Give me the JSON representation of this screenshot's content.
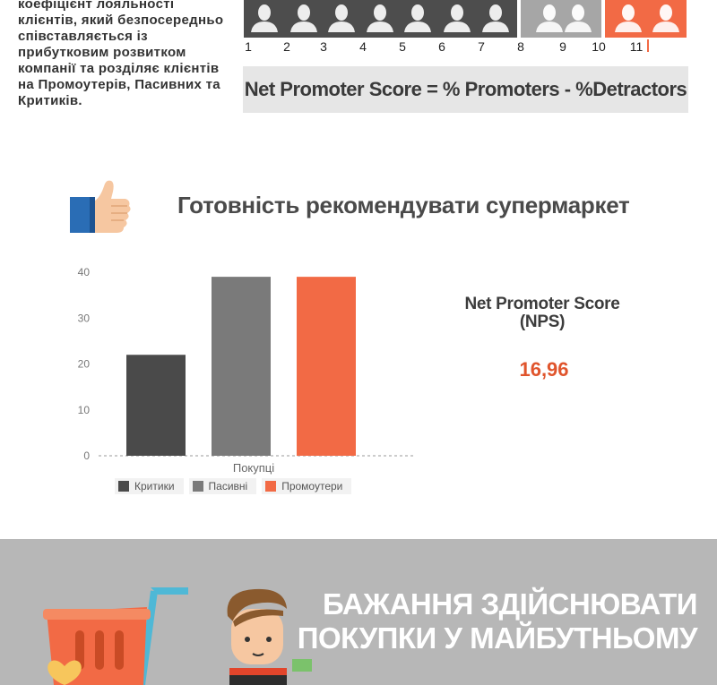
{
  "description": "коефіцієнт лояльності\nклієнтів, який безпосередньо\nспівставляється із\nприбутковим розвитком\nкомпанії та розділяє клієнтів\n на Промоутерів, Пасивних та\nКритиків.",
  "scale": {
    "numbers": [
      "1",
      "2",
      "3",
      "4",
      "5",
      "6",
      "7",
      "8",
      "9",
      "10",
      "11"
    ],
    "colors": {
      "detractor": "#4d4d4d",
      "passive": "#a6a6a6",
      "promoter": "#f26a45"
    }
  },
  "formula": "Net Promoter Score  =  % Promoters - %Detractors",
  "section_title": "Готовність рекомендувати супермаркет",
  "nps": {
    "label": "Net Promoter Score\n(NPS)",
    "value": "16,96"
  },
  "chart_data": {
    "type": "bar",
    "categories": [
      "Покупці"
    ],
    "series": [
      {
        "name": "Критики",
        "values": [
          22
        ],
        "color": "#4a4a4a"
      },
      {
        "name": "Пасивні",
        "values": [
          39
        ],
        "color": "#7a7a7a"
      },
      {
        "name": "Промоутери",
        "values": [
          39
        ],
        "color": "#f26a45"
      }
    ],
    "title": "",
    "xlabel": "",
    "ylabel": "",
    "ylim": [
      0,
      40
    ],
    "yticks": [
      0,
      10,
      20,
      30,
      40
    ],
    "grid": false,
    "legend": "bottom"
  },
  "future": {
    "title": "БАЖАННЯ ЗДІЙСНЮВАТИ\nПОКУПКИ У МАЙБУТНЬОМУ"
  },
  "icons": {
    "thumb": "thumbs-up-icon",
    "basket": "shopping-basket-icon",
    "character": "shopper-character-icon"
  }
}
